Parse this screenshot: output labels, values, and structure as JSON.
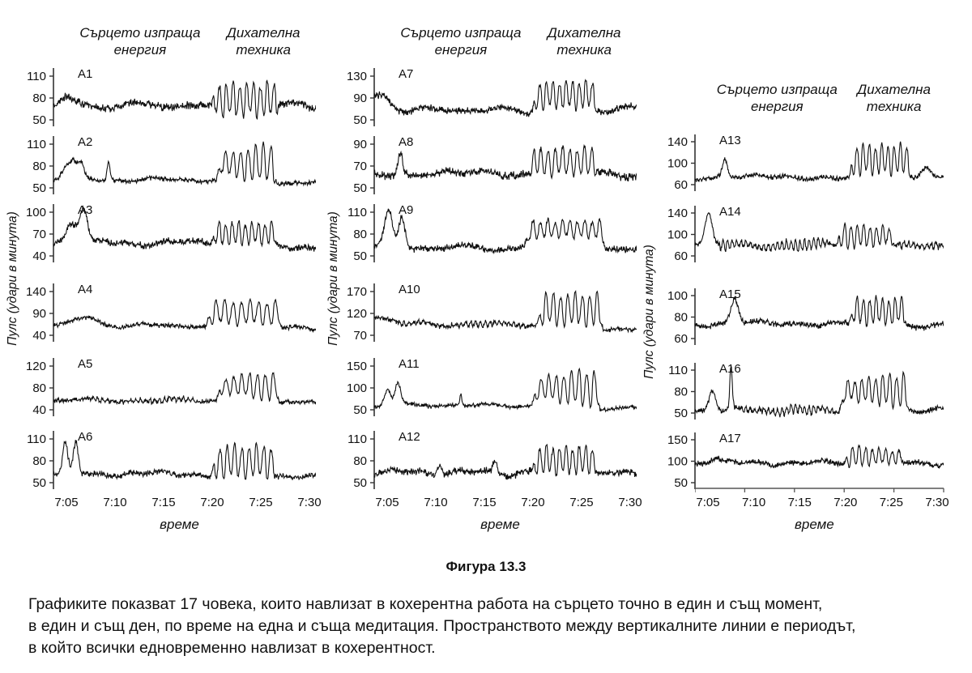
{
  "figure_caption": {
    "title": "Фигура 13.3",
    "lines": [
      "Графиките показват 17 човека, които навлизат в кохерентна работа на сърцето точно в един и същ момент,",
      "в един и същ ден, по време на една и съща медитация. Пространството между вертикалните линии е периодът,",
      "в който всички едновременно навлизат в кохерентност."
    ]
  },
  "chart_data": {
    "type": "line",
    "trace_color": "#111111",
    "header_left_lines": [
      "Сърцето изпраща",
      "енергия"
    ],
    "header_right_lines": [
      "Дихателна",
      "техника"
    ],
    "ylabel": "Пулс (удари в минута)",
    "xlabel": "време",
    "x_ticks": [
      "7:05",
      "7:10",
      "7:15",
      "7:20",
      "7:25",
      "7:30"
    ],
    "x_minutes_range": [
      "7:05",
      "7:30"
    ],
    "coherence_window_x": [
      "7:20",
      "7:26"
    ],
    "columns": [
      [
        "A1",
        "A2",
        "A3",
        "A4",
        "A5",
        "A6"
      ],
      [
        "A7",
        "A8",
        "A9",
        "A10",
        "A11",
        "A12"
      ],
      [
        "A13",
        "A14",
        "A15",
        "A16",
        "A17"
      ]
    ],
    "charts": [
      {
        "id": "A1",
        "y_ticks": [
          110,
          80,
          50
        ],
        "baseline": 70,
        "noise": 6,
        "coh": [
          0.6,
          0.86
        ],
        "coh_low": 52,
        "coh_high": 104,
        "cycles": 10,
        "end_level": 68,
        "spikes": [
          [
            0.05,
            0.025,
            10
          ]
        ],
        "dense": [],
        "mode": "flat",
        "seed": 101
      },
      {
        "id": "A2",
        "y_ticks": [
          110,
          80,
          50
        ],
        "baseline": 61,
        "noise": 3.5,
        "coh": [
          0.62,
          0.85
        ],
        "coh_low": 54,
        "coh_high": 112,
        "cycles": 8,
        "end_level": 57,
        "spikes": [
          [
            0.045,
            0.02,
            16
          ],
          [
            0.075,
            0.02,
            24
          ],
          [
            0.105,
            0.015,
            20
          ],
          [
            0.21,
            0.008,
            26
          ]
        ],
        "dense": [],
        "mode": "grow",
        "seed": 102
      },
      {
        "id": "A3",
        "y_ticks": [
          100,
          70,
          40
        ],
        "baseline": 58,
        "noise": 5,
        "coh": [
          0.6,
          0.85
        ],
        "coh_low": 54,
        "coh_high": 88,
        "cycles": 10,
        "end_level": 53,
        "spikes": [
          [
            0.07,
            0.03,
            28
          ],
          [
            0.115,
            0.02,
            44
          ]
        ],
        "dense": [],
        "mode": "flat",
        "seed": 103
      },
      {
        "id": "A4",
        "y_ticks": [
          140,
          90,
          40
        ],
        "baseline": 62,
        "noise": 6,
        "coh": [
          0.58,
          0.87
        ],
        "coh_low": 62,
        "coh_high": 122,
        "cycles": 9,
        "end_level": 55,
        "spikes": [
          [
            0.12,
            0.06,
            18
          ]
        ],
        "dense": [],
        "mode": "flat",
        "seed": 104
      },
      {
        "id": "A5",
        "y_ticks": [
          120,
          80,
          40
        ],
        "baseline": 57,
        "noise": 4.5,
        "coh": [
          0.62,
          0.86
        ],
        "coh_low": 56,
        "coh_high": 112,
        "cycles": 8,
        "end_level": 55,
        "spikes": [],
        "dense": [
          [
            0.15,
            0.55,
            4
          ]
        ],
        "mode": "grow",
        "seed": 105
      },
      {
        "id": "A6",
        "y_ticks": [
          110,
          80,
          50
        ],
        "baseline": 62,
        "noise": 4.5,
        "coh": [
          0.6,
          0.85
        ],
        "coh_low": 54,
        "coh_high": 104,
        "cycles": 9,
        "end_level": 60,
        "spikes": [
          [
            0.045,
            0.013,
            40
          ],
          [
            0.085,
            0.013,
            42
          ]
        ],
        "dense": [],
        "mode": "flat",
        "seed": 106
      },
      {
        "id": "A7",
        "y_ticks": [
          130,
          90,
          50
        ],
        "baseline": 68,
        "noise": 7,
        "coh": [
          0.6,
          0.85
        ],
        "coh_low": 68,
        "coh_high": 124,
        "cycles": 10,
        "end_level": 70,
        "spikes": [
          [
            0.03,
            0.04,
            14
          ]
        ],
        "dense": [],
        "start_level": 82,
        "mode": "flat",
        "seed": 107
      },
      {
        "id": "A8",
        "y_ticks": [
          90,
          70,
          50
        ],
        "baseline": 63,
        "noise": 4,
        "coh": [
          0.6,
          0.85
        ],
        "coh_low": 60,
        "coh_high": 88,
        "cycles": 9,
        "end_level": 62,
        "spikes": [
          [
            0.1,
            0.012,
            20
          ],
          [
            0.61,
            0.008,
            26
          ]
        ],
        "dense": [],
        "mode": "flat",
        "seed": 108
      },
      {
        "id": "A9",
        "y_ticks": [
          110,
          80,
          50
        ],
        "baseline": 61,
        "noise": 5,
        "coh": [
          0.57,
          0.88
        ],
        "coh_low": 74,
        "coh_high": 100,
        "cycles": 11,
        "end_level": 58,
        "spikes": [
          [
            0.055,
            0.022,
            52
          ],
          [
            0.105,
            0.018,
            44
          ]
        ],
        "dense": [],
        "mode": "flat",
        "seed": 109
      },
      {
        "id": "A10",
        "y_ticks": [
          170,
          120,
          70
        ],
        "baseline": 95,
        "noise": 6,
        "coh": [
          0.62,
          0.87
        ],
        "coh_low": 88,
        "coh_high": 170,
        "cycles": 9,
        "end_level": 85,
        "spikes": [],
        "dense": [
          [
            0.1,
            0.58,
            6
          ]
        ],
        "start_level": 115,
        "mode": "flat",
        "seed": 110
      },
      {
        "id": "A11",
        "y_ticks": [
          150,
          100,
          50
        ],
        "baseline": 60,
        "noise": 5,
        "coh": [
          0.6,
          0.86
        ],
        "coh_low": 54,
        "coh_high": 146,
        "cycles": 9,
        "end_level": 52,
        "spikes": [
          [
            0.05,
            0.018,
            36
          ],
          [
            0.09,
            0.014,
            50
          ],
          [
            0.33,
            0.006,
            24
          ]
        ],
        "dense": [],
        "mode": "grow",
        "seed": 111
      },
      {
        "id": "A12",
        "y_ticks": [
          110,
          80,
          50
        ],
        "baseline": 64,
        "noise": 5.5,
        "coh": [
          0.6,
          0.85
        ],
        "coh_low": 60,
        "coh_high": 102,
        "cycles": 10,
        "end_level": 62,
        "spikes": [
          [
            0.25,
            0.012,
            14
          ],
          [
            0.46,
            0.01,
            16
          ]
        ],
        "dense": [],
        "mode": "flat",
        "seed": 112
      },
      {
        "id": "A13",
        "y_ticks": [
          140,
          100,
          60
        ],
        "baseline": 74,
        "noise": 5,
        "coh": [
          0.62,
          0.87
        ],
        "coh_low": 76,
        "coh_high": 138,
        "cycles": 10,
        "end_level": 76,
        "spikes": [
          [
            0.12,
            0.014,
            32
          ],
          [
            0.93,
            0.025,
            16
          ]
        ],
        "dense": [],
        "mode": "flat",
        "seed": 113
      },
      {
        "id": "A14",
        "y_ticks": [
          140,
          100,
          60
        ],
        "baseline": 80,
        "noise": 5,
        "coh": [
          0.57,
          0.8
        ],
        "coh_low": 68,
        "coh_high": 126,
        "cycles": 9,
        "end_level": 78,
        "spikes": [
          [
            0.055,
            0.02,
            58
          ]
        ],
        "dense": [
          [
            0.1,
            0.54,
            10
          ],
          [
            0.82,
            0.98,
            8
          ]
        ],
        "mode": "decay",
        "seed": 114
      },
      {
        "id": "A15",
        "y_ticks": [
          100,
          80,
          60
        ],
        "baseline": 74,
        "noise": 3,
        "coh": [
          0.62,
          0.85
        ],
        "coh_low": 72,
        "coh_high": 99,
        "cycles": 9,
        "end_level": 72,
        "spikes": [
          [
            0.16,
            0.022,
            22
          ]
        ],
        "dense": [],
        "mode": "flat",
        "seed": 115
      },
      {
        "id": "A16",
        "y_ticks": [
          110,
          80,
          50
        ],
        "baseline": 54,
        "noise": 4,
        "coh": [
          0.58,
          0.86
        ],
        "coh_low": 56,
        "coh_high": 108,
        "cycles": 10,
        "end_level": 54,
        "spikes": [
          [
            0.07,
            0.018,
            28
          ],
          [
            0.145,
            0.007,
            60
          ]
        ],
        "dense": [
          [
            0.18,
            0.56,
            6
          ]
        ],
        "mode": "grow",
        "seed": 116
      },
      {
        "id": "A17",
        "y_ticks": [
          150,
          100,
          50
        ],
        "baseline": 96,
        "noise": 7,
        "coh": [
          0.6,
          0.84
        ],
        "coh_low": 82,
        "coh_high": 140,
        "cycles": 9,
        "end_level": 94,
        "spikes": [
          [
            0.08,
            0.03,
            12
          ]
        ],
        "dense": [],
        "mode": "decay",
        "seed": 117
      }
    ]
  }
}
